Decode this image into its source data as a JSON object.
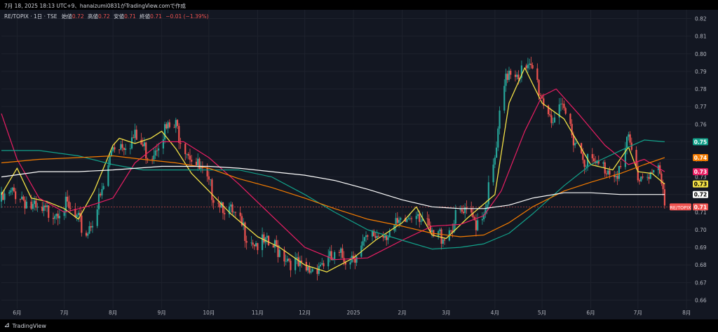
{
  "header": {
    "snapshot_info": "7月 18, 2025 18:13 UTC+9、hanaizumi0831がTradingView.comで作成",
    "symbol": "RE/TOPIX · 1日 · TSE",
    "ohlc": [
      {
        "label": "始値",
        "value": "0.72"
      },
      {
        "label": "高値",
        "value": "0.72"
      },
      {
        "label": "安値",
        "value": "0.71"
      },
      {
        "label": "終値",
        "value": "0.71"
      }
    ],
    "change": "−0.01 (−1.39%)"
  },
  "footer": {
    "brand": "TradingView",
    "logo": "tradingview-logo-icon"
  },
  "colors": {
    "background": "#131722",
    "grid": "#1e222d",
    "up": "#26a69a",
    "down": "#ef5350",
    "ma_fast": "#f3e146",
    "ma_mid": "#e91e63",
    "ma_teal": "#12a18a",
    "ma_orange": "#f57c00",
    "ma_white": "#ffffff"
  },
  "price_tags": [
    {
      "text": "0.75",
      "value": 0.75,
      "color": "#12a18a",
      "text_color": "#ffffff"
    },
    {
      "text": "0.74",
      "value": 0.741,
      "color": "#f57c00",
      "text_color": "#ffffff"
    },
    {
      "text": "0.73",
      "value": 0.733,
      "color": "#e91e63",
      "text_color": "#ffffff"
    },
    {
      "text": "0.73",
      "value": 0.726,
      "color": "#f3e146",
      "text_color": "#000000"
    },
    {
      "text": "0.72",
      "value": 0.72,
      "color": "#ffffff",
      "text_color": "#000000"
    },
    {
      "text": "0.71",
      "value": 0.713,
      "color": "#ef5350",
      "text_color": "#ffffff",
      "symbol_label": "RE/TOPIX"
    }
  ],
  "chart_data": {
    "type": "line",
    "title": "RE/TOPIX · 1日 · TSE",
    "y_axis": {
      "ticks": [
        0.82,
        0.81,
        0.8,
        0.79,
        0.78,
        0.77,
        0.76,
        0.75,
        0.74,
        0.73,
        0.72,
        0.71,
        0.7,
        0.69,
        0.68,
        0.67,
        0.66
      ],
      "range": [
        0.655,
        0.825
      ],
      "side": "right"
    },
    "x_axis": {
      "ticks": [
        "6月",
        "7月",
        "8月",
        "9月",
        "10月",
        "11月",
        "12月",
        "2025",
        "2月",
        "3月",
        "4月",
        "5月",
        "6月",
        "7月",
        "8月"
      ],
      "range": [
        "2024-05-22",
        "2025-08-04"
      ]
    },
    "grid": true,
    "candle_series": {
      "name": "RE/TOPIX",
      "x": [
        "2024-05-22",
        "2024-06-01",
        "2024-06-15",
        "2024-07-01",
        "2024-07-15",
        "2024-07-25",
        "2024-08-01",
        "2024-08-08",
        "2024-08-15",
        "2024-08-25",
        "2024-09-01",
        "2024-09-10",
        "2024-09-20",
        "2024-10-01",
        "2024-10-10",
        "2024-10-20",
        "2024-11-01",
        "2024-11-15",
        "2024-12-01",
        "2024-12-10",
        "2024-12-20",
        "2025-01-01",
        "2025-01-15",
        "2025-02-01",
        "2025-02-10",
        "2025-02-20",
        "2025-03-01",
        "2025-03-10",
        "2025-03-20",
        "2025-03-25",
        "2025-04-01",
        "2025-04-05",
        "2025-04-10",
        "2025-04-20",
        "2025-04-25",
        "2025-05-01",
        "2025-05-08",
        "2025-05-15",
        "2025-05-25",
        "2025-06-01",
        "2025-06-10",
        "2025-06-20",
        "2025-06-25",
        "2025-07-01",
        "2025-07-08",
        "2025-07-15",
        "2025-07-18"
      ],
      "values": [
        0.716,
        0.722,
        0.708,
        0.714,
        0.698,
        0.72,
        0.748,
        0.75,
        0.752,
        0.742,
        0.756,
        0.758,
        0.742,
        0.724,
        0.715,
        0.703,
        0.692,
        0.689,
        0.675,
        0.681,
        0.683,
        0.686,
        0.697,
        0.702,
        0.713,
        0.695,
        0.698,
        0.709,
        0.705,
        0.711,
        0.738,
        0.771,
        0.792,
        0.789,
        0.791,
        0.775,
        0.763,
        0.767,
        0.745,
        0.737,
        0.735,
        0.734,
        0.751,
        0.73,
        0.733,
        0.731,
        0.711
      ]
    },
    "series": [
      {
        "name": "",
        "color": "#f3e146",
        "x": [
          "2024-05-22",
          "2024-06-01",
          "2024-06-10",
          "2024-06-20",
          "2024-07-01",
          "2024-07-10",
          "2024-07-20",
          "2024-08-01",
          "2024-08-05",
          "2024-08-15",
          "2024-08-25",
          "2024-09-01",
          "2024-09-10",
          "2024-09-20",
          "2024-10-01",
          "2024-10-15",
          "2024-11-01",
          "2024-11-15",
          "2024-12-01",
          "2024-12-15",
          "2025-01-01",
          "2025-01-15",
          "2025-02-01",
          "2025-02-10",
          "2025-02-20",
          "2025-03-01",
          "2025-03-15",
          "2025-04-01",
          "2025-04-10",
          "2025-04-20",
          "2025-05-01",
          "2025-05-15",
          "2025-06-01",
          "2025-06-15",
          "2025-06-25",
          "2025-07-01",
          "2025-07-10",
          "2025-07-18"
        ],
        "values": [
          0.72,
          0.735,
          0.718,
          0.716,
          0.712,
          0.706,
          0.722,
          0.748,
          0.752,
          0.749,
          0.752,
          0.756,
          0.746,
          0.732,
          0.722,
          0.709,
          0.696,
          0.69,
          0.68,
          0.676,
          0.684,
          0.694,
          0.704,
          0.713,
          0.697,
          0.695,
          0.707,
          0.72,
          0.772,
          0.792,
          0.772,
          0.763,
          0.737,
          0.734,
          0.747,
          0.733,
          0.732,
          0.726
        ]
      },
      {
        "name": "",
        "color": "#e91e63",
        "x": [
          "2024-05-22",
          "2024-06-01",
          "2024-06-15",
          "2024-07-01",
          "2024-07-15",
          "2024-08-01",
          "2024-08-15",
          "2024-09-01",
          "2024-09-15",
          "2024-10-01",
          "2024-10-20",
          "2024-11-10",
          "2024-12-01",
          "2024-12-20",
          "2025-01-10",
          "2025-02-01",
          "2025-02-20",
          "2025-03-10",
          "2025-03-25",
          "2025-04-05",
          "2025-04-20",
          "2025-05-01",
          "2025-05-10",
          "2025-05-25",
          "2025-06-10",
          "2025-06-25",
          "2025-07-05",
          "2025-07-18"
        ],
        "values": [
          0.766,
          0.74,
          0.718,
          0.71,
          0.713,
          0.718,
          0.738,
          0.75,
          0.75,
          0.741,
          0.726,
          0.708,
          0.69,
          0.683,
          0.684,
          0.694,
          0.702,
          0.703,
          0.708,
          0.722,
          0.756,
          0.776,
          0.78,
          0.765,
          0.748,
          0.737,
          0.74,
          0.733
        ]
      },
      {
        "name": "",
        "color": "#12a18a",
        "x": [
          "2024-05-22",
          "2024-06-15",
          "2024-07-10",
          "2024-08-01",
          "2024-08-20",
          "2024-09-10",
          "2024-10-01",
          "2024-10-20",
          "2024-11-10",
          "2024-12-01",
          "2024-12-20",
          "2025-01-10",
          "2025-02-01",
          "2025-02-20",
          "2025-03-10",
          "2025-03-25",
          "2025-04-10",
          "2025-04-25",
          "2025-05-15",
          "2025-06-01",
          "2025-06-20",
          "2025-07-05",
          "2025-07-18"
        ],
        "values": [
          0.745,
          0.745,
          0.742,
          0.737,
          0.734,
          0.734,
          0.734,
          0.734,
          0.73,
          0.72,
          0.71,
          0.7,
          0.694,
          0.689,
          0.69,
          0.692,
          0.698,
          0.709,
          0.725,
          0.737,
          0.745,
          0.751,
          0.75
        ]
      },
      {
        "name": "",
        "color": "#f57c00",
        "x": [
          "2024-05-22",
          "2024-06-15",
          "2024-07-10",
          "2024-08-01",
          "2024-08-20",
          "2024-09-10",
          "2024-10-01",
          "2024-10-20",
          "2024-11-10",
          "2024-12-01",
          "2024-12-20",
          "2025-01-10",
          "2025-02-01",
          "2025-02-20",
          "2025-03-10",
          "2025-03-25",
          "2025-04-10",
          "2025-04-25",
          "2025-05-15",
          "2025-06-01",
          "2025-06-20",
          "2025-07-05",
          "2025-07-18"
        ],
        "values": [
          0.738,
          0.74,
          0.741,
          0.742,
          0.74,
          0.738,
          0.735,
          0.729,
          0.724,
          0.718,
          0.712,
          0.706,
          0.702,
          0.698,
          0.696,
          0.697,
          0.704,
          0.713,
          0.722,
          0.727,
          0.732,
          0.737,
          0.741
        ]
      },
      {
        "name": "",
        "color": "#ffffff",
        "x": [
          "2024-05-22",
          "2024-06-15",
          "2024-07-10",
          "2024-08-01",
          "2024-09-01",
          "2024-10-01",
          "2024-10-20",
          "2024-11-10",
          "2024-12-01",
          "2024-12-20",
          "2025-01-10",
          "2025-02-01",
          "2025-02-20",
          "2025-03-10",
          "2025-03-25",
          "2025-04-10",
          "2025-04-25",
          "2025-05-15",
          "2025-06-01",
          "2025-06-20",
          "2025-07-05",
          "2025-07-18"
        ],
        "values": [
          0.73,
          0.733,
          0.733,
          0.734,
          0.736,
          0.736,
          0.735,
          0.733,
          0.731,
          0.728,
          0.723,
          0.717,
          0.713,
          0.712,
          0.712,
          0.714,
          0.718,
          0.721,
          0.721,
          0.72,
          0.72,
          0.72
        ]
      }
    ]
  }
}
